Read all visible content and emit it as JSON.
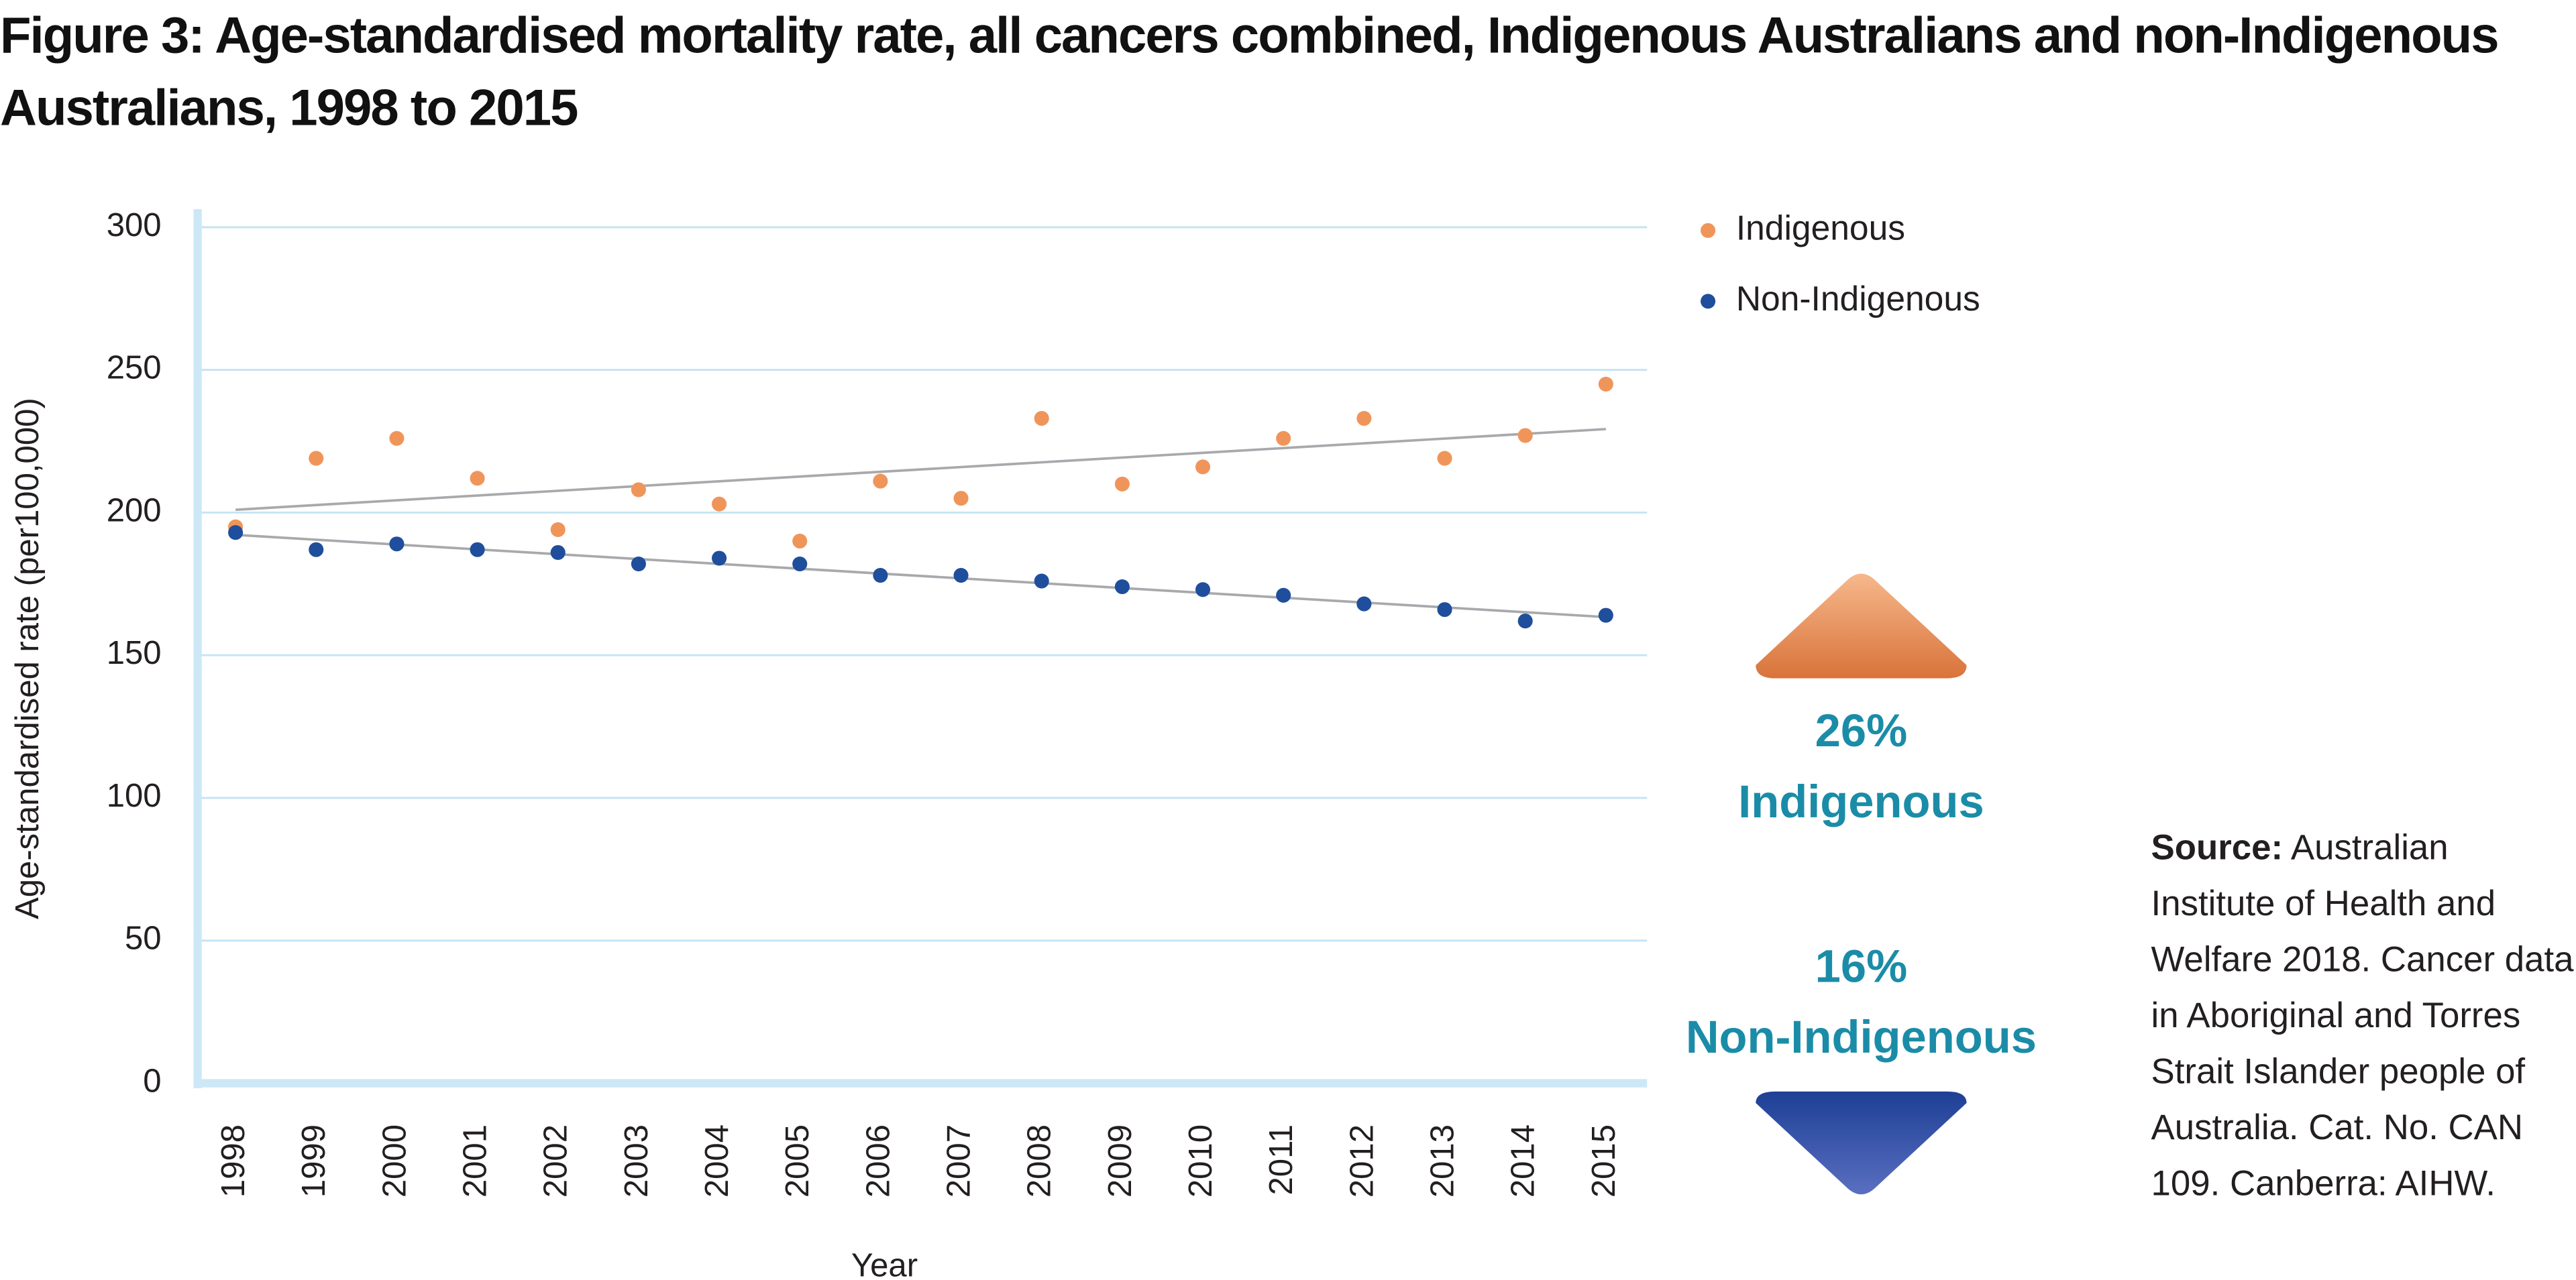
{
  "chart_data": {
    "type": "scatter",
    "title": "Figure 3: Age-standardised mortality rate, all cancers combined, Indigenous Australians and non-Indigenous Australians, 1998 to 2015",
    "x_label": "Year",
    "y_label": "Age-standardised rate (per100,000)",
    "categories": [
      "1998",
      "1999",
      "2000",
      "2001",
      "2002",
      "2003",
      "2004",
      "2005",
      "2006",
      "2007",
      "2008",
      "2009",
      "2010",
      "2011",
      "2012",
      "2013",
      "2014",
      "2015"
    ],
    "series": [
      {
        "name": "Indigenous",
        "color": "#f0955a",
        "values": [
          195,
          219,
          226,
          212,
          194,
          208,
          203,
          190,
          211,
          205,
          233,
          210,
          216,
          226,
          233,
          219,
          227,
          245
        ]
      },
      {
        "name": "Non-Indigenous",
        "color": "#1f4e9c",
        "values": [
          193,
          187,
          189,
          187,
          186,
          182,
          184,
          182,
          178,
          178,
          176,
          174,
          173,
          171,
          168,
          166,
          162,
          164
        ]
      }
    ],
    "ylim": [
      0,
      300
    ],
    "yticks": [
      0,
      50,
      100,
      150,
      200,
      250,
      300
    ],
    "grid": true,
    "trendline": true,
    "legend": "upper right",
    "annotations": [
      {
        "value": "26%",
        "label": "Indigenous",
        "direction": "up",
        "color": "#f0955a"
      },
      {
        "value": "16%",
        "label": "Non-Indigenous",
        "direction": "down",
        "color": "#1f4e9c"
      }
    ],
    "source_label": "Source:",
    "source_text": "Australian Institute of Health and Welfare 2018. Cancer data in Aboriginal and Torres Strait Islander people of Australia. Cat. No. CAN 109. Canberra: AIHW."
  }
}
